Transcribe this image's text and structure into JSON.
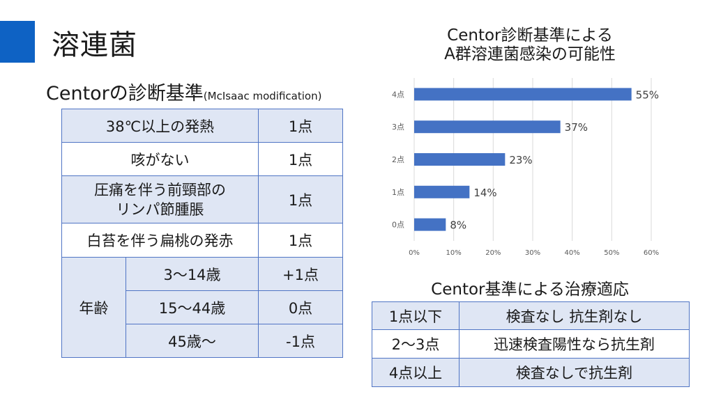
{
  "accent_color": "#0e62c4",
  "slide": {
    "title": "溶連菌"
  },
  "criteria": {
    "heading": "Centorの診断基準",
    "heading_note": "(McIsaac modification)",
    "rows": [
      {
        "label": "38℃以上の発熱",
        "points": "1点"
      },
      {
        "label": "咳がない",
        "points": "1点"
      },
      {
        "label_line1": "圧痛を伴う前頸部の",
        "label_line2": "リンパ節腫脹",
        "points": "1点"
      },
      {
        "label": "白苔を伴う扁桃の発赤",
        "points": "1点"
      }
    ],
    "age": {
      "label": "年齢",
      "rows": [
        {
          "range": "3～14歳",
          "points": "+1点"
        },
        {
          "range": "15～44歳",
          "points": "0点"
        },
        {
          "range": "45歳～",
          "points": "-1点"
        }
      ]
    }
  },
  "chart_data": {
    "type": "bar",
    "orientation": "horizontal",
    "title_line1": "Centor診断基準による",
    "title_line2": "A群溶連菌感染の可能性",
    "categories": [
      "4点",
      "3点",
      "2点",
      "1点",
      "0点"
    ],
    "values": [
      55,
      37,
      23,
      14,
      8
    ],
    "value_labels": [
      "55%",
      "37%",
      "23%",
      "14%",
      "8%"
    ],
    "x_ticks": [
      0,
      10,
      20,
      30,
      40,
      50,
      60
    ],
    "x_tick_labels": [
      "0%",
      "10%",
      "20%",
      "30%",
      "40%",
      "50%",
      "60%"
    ],
    "xlim": [
      0,
      60
    ],
    "grid": true,
    "bar_color": "#4472c4"
  },
  "treatment": {
    "heading": "Centor基準による治療適応",
    "rows": [
      {
        "score": "1点以下",
        "action": "検査なし 抗生剤なし"
      },
      {
        "score": "2～3点",
        "action": "迅速検査陽性なら抗生剤"
      },
      {
        "score": "4点以上",
        "action": "検査なしで抗生剤"
      }
    ]
  }
}
